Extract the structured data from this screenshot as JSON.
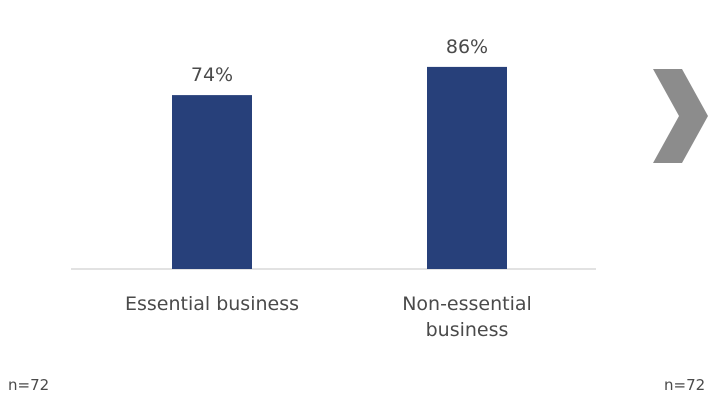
{
  "colors": {
    "bar": "#27407a",
    "axis": "#d9d9d9",
    "arrow": "#8c8c8c",
    "text": "#4a4a4a"
  },
  "icons": {
    "next_arrow": "chevron-right-icon"
  },
  "sample_left": "n=72",
  "sample_right": "n=72",
  "chart_data": {
    "type": "bar",
    "categories": [
      [
        "Essential business"
      ],
      [
        "Non-essential",
        "business"
      ]
    ],
    "values": [
      74,
      86
    ],
    "value_labels": [
      "74%",
      "86%"
    ],
    "title": "",
    "xlabel": "",
    "ylabel": "",
    "ylim": [
      0,
      100
    ],
    "grid": false,
    "legend": "none"
  }
}
